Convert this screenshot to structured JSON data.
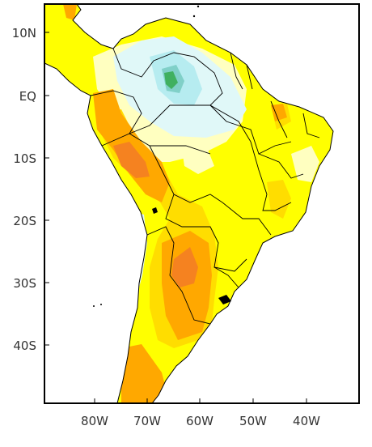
{
  "map": {
    "lat_labels": [
      "10N",
      "EQ",
      "10S",
      "20S",
      "30S",
      "40S"
    ],
    "lon_labels": [
      "80W",
      "70W",
      "60W",
      "50W",
      "40W"
    ],
    "extent": {
      "lon": [
        -90,
        -30
      ],
      "lat": [
        -50,
        12
      ]
    },
    "colors": {
      "yellow": "#ffff00",
      "light_yellow": "#ffffc0",
      "gold": "#ffdd00",
      "orange": "#ffa800",
      "dark_orange": "#f58220",
      "light_cyan": "#e0f8f8",
      "cyan": "#b6ecf0",
      "teal": "#80d0c8",
      "green": "#40b060",
      "land_white": "#ffffff",
      "outline": "#000000"
    }
  }
}
